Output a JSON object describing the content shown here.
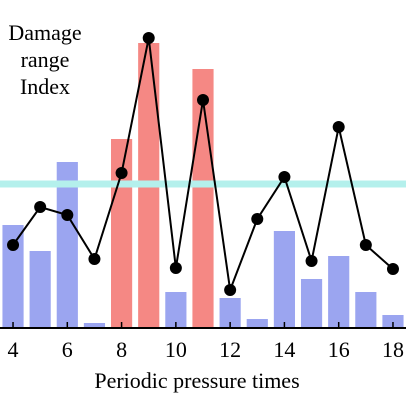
{
  "chart_data": {
    "type": "bar-line",
    "title_lines": [
      "Damage",
      "range",
      "Index"
    ],
    "x_label": "Periodic pressure times",
    "x": [
      4,
      5,
      6,
      7,
      8,
      9,
      10,
      11,
      12,
      13,
      14,
      15,
      16,
      17,
      18
    ],
    "bars": {
      "values": [
        103,
        77,
        166,
        5,
        189,
        285,
        36,
        259,
        30,
        9,
        97,
        49,
        72,
        36,
        13
      ],
      "colors": [
        "#9ba5f0",
        "#9ba5f0",
        "#9ba5f0",
        "#9ba5f0",
        "#f58884",
        "#f58884",
        "#9ba5f0",
        "#f58884",
        "#9ba5f0",
        "#9ba5f0",
        "#9ba5f0",
        "#9ba5f0",
        "#9ba5f0",
        "#9ba5f0",
        "#9ba5f0"
      ]
    },
    "line": {
      "color": "#000000",
      "values": [
        83,
        121,
        113,
        69,
        155,
        290,
        60,
        228,
        38,
        109,
        151,
        67,
        201,
        83,
        59
      ]
    },
    "threshold": {
      "value": 144,
      "color": "#b4f0ec"
    },
    "xlim": [
      3.52,
      18.48
    ],
    "xticks": [
      4,
      6,
      8,
      10,
      12,
      14,
      16,
      18
    ],
    "ylim": [
      0,
      310
    ]
  }
}
